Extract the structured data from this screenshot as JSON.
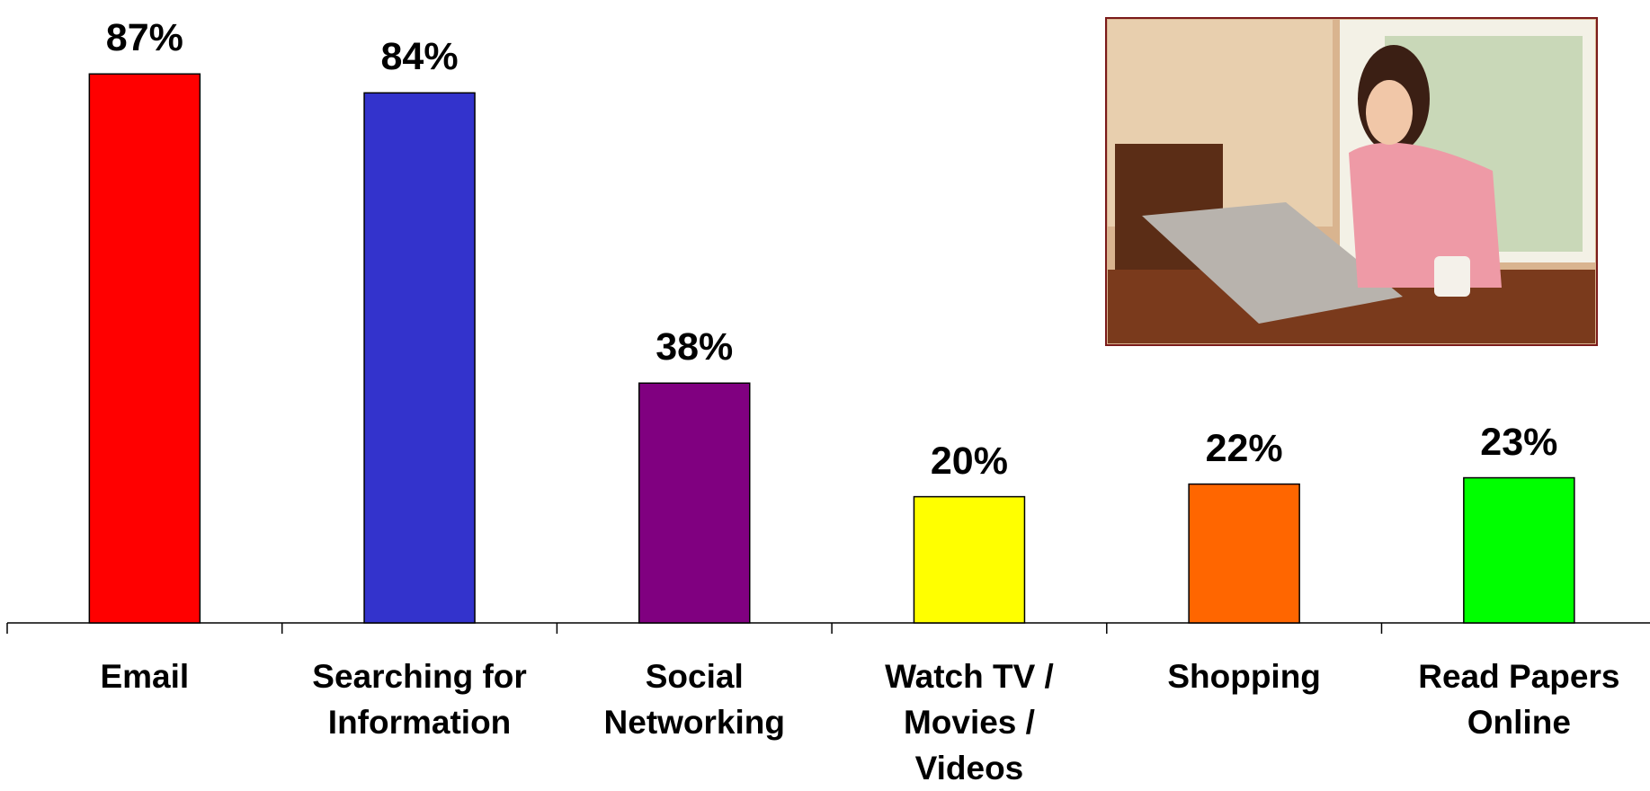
{
  "chart_data": {
    "type": "bar",
    "categories": [
      "Email",
      "Searching for Information",
      "Social Networking",
      "Watch TV / Movies / Videos",
      "Shopping",
      "Read Papers Online"
    ],
    "values": [
      87,
      84,
      38,
      20,
      22,
      23
    ],
    "value_labels": [
      "87%",
      "84%",
      "38%",
      "20%",
      "22%",
      "23%"
    ],
    "colors": [
      "#ff0000",
      "#3333cc",
      "#800080",
      "#ffff00",
      "#ff6600",
      "#00ff00"
    ]
  }
}
